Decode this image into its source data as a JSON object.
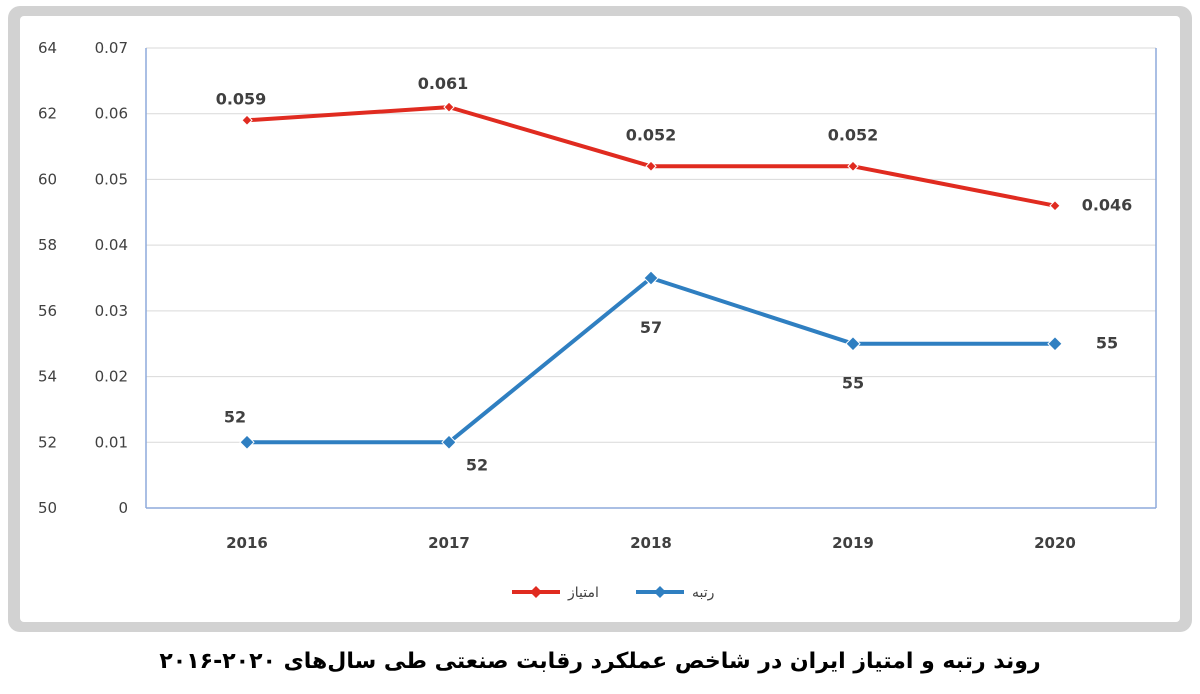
{
  "chart_data": {
    "type": "line",
    "categories": [
      "2016",
      "2017",
      "2018",
      "2019",
      "2020"
    ],
    "series": [
      {
        "name": "امتیاز",
        "axis": "secondary",
        "color": "#e02b20",
        "marker": "diamond",
        "values": [
          0.059,
          0.061,
          0.052,
          0.052,
          0.046
        ],
        "labels": [
          "0.059",
          "0.061",
          "0.052",
          "0.052",
          "0.046"
        ]
      },
      {
        "name": "رتبه",
        "axis": "primary",
        "color": "#2f7fc1",
        "marker": "diamond",
        "values": [
          52,
          52,
          57,
          55,
          55
        ],
        "labels": [
          "52",
          "52",
          "57",
          "55",
          "55"
        ]
      }
    ],
    "y_primary": {
      "ylim": [
        50,
        64
      ],
      "ticks": [
        "50",
        "52",
        "54",
        "56",
        "58",
        "60",
        "62",
        "64"
      ]
    },
    "y_secondary": {
      "ylim": [
        0,
        0.07
      ],
      "ticks": [
        "0",
        "0.01",
        "0.02",
        "0.03",
        "0.04",
        "0.05",
        "0.06",
        "0.07"
      ]
    },
    "grid": true,
    "legend_position": "bottom"
  },
  "caption": "روند رتبه و امتیاز ایران در شاخص عملکرد رقابت صنعتی طی سال‌های ۲۰۲۰-۲۰۱۶",
  "colors": {
    "frame": "#d2d2d2",
    "grid": "#d9d9d9",
    "axis": "#8eaadb"
  }
}
